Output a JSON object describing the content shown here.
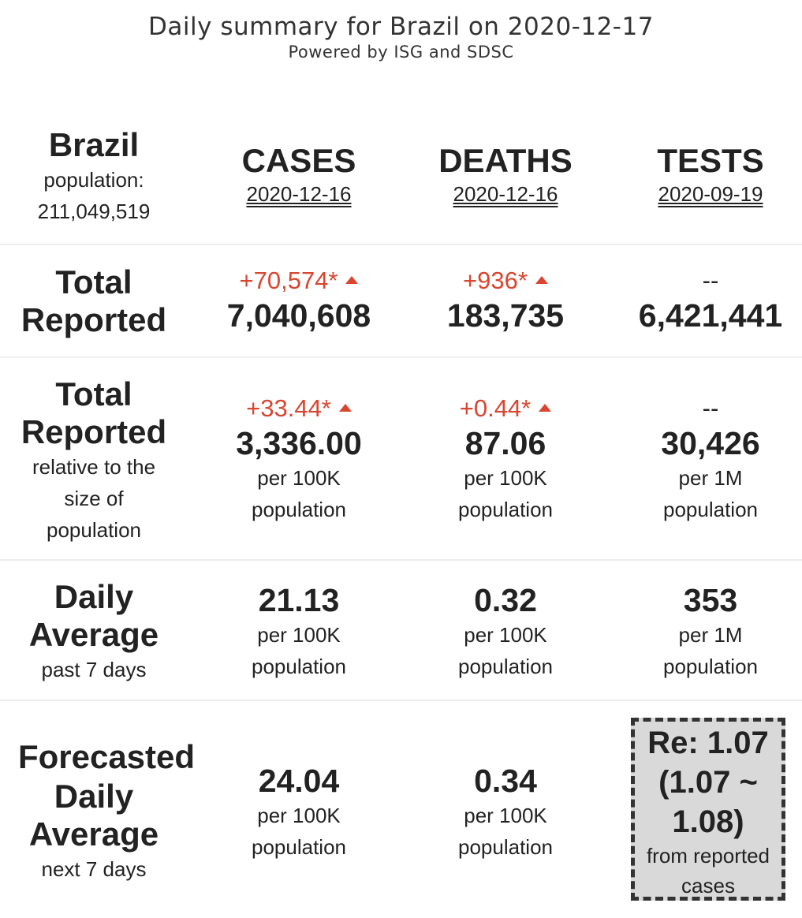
{
  "header": {
    "title": "Daily summary for Brazil on 2020-12-17",
    "subtitle": "Powered by ISG and SDSC"
  },
  "country": {
    "name": "Brazil",
    "population_label": "population:",
    "population_value": "211,049,519"
  },
  "columns": [
    {
      "title": "CASES",
      "date": "2020-12-16"
    },
    {
      "title": "DEATHS",
      "date": "2020-12-16"
    },
    {
      "title": "TESTS",
      "date": "2020-09-19"
    }
  ],
  "total_reported": {
    "label_line1": "Total",
    "label_line2": "Reported",
    "cases": {
      "delta": "+70,574*",
      "value": "7,040,608"
    },
    "deaths": {
      "delta": "+936*",
      "value": "183,735"
    },
    "tests": {
      "delta": "--",
      "value": "6,421,441"
    }
  },
  "relative": {
    "label_line1": "Total",
    "label_line2": "Reported",
    "note_line1": "relative to the",
    "note_line2": "size of",
    "note_line3": "population",
    "cases": {
      "delta": "+33.44*",
      "value": "3,336.00",
      "unit1": "per 100K",
      "unit2": "population"
    },
    "deaths": {
      "delta": "+0.44*",
      "value": "87.06",
      "unit1": "per 100K",
      "unit2": "population"
    },
    "tests": {
      "delta": "--",
      "value": "30,426",
      "unit1": "per 1M",
      "unit2": "population"
    }
  },
  "daily_average": {
    "label_line1": "Daily",
    "label_line2": "Average",
    "note": "past 7 days",
    "cases": {
      "value": "21.13",
      "unit1": "per 100K",
      "unit2": "population"
    },
    "deaths": {
      "value": "0.32",
      "unit1": "per 100K",
      "unit2": "population"
    },
    "tests": {
      "value": "353",
      "unit1": "per 1M",
      "unit2": "population"
    }
  },
  "forecast": {
    "label_line1": "Forecasted",
    "label_line2": "Daily",
    "label_line3": "Average",
    "note": "next 7 days",
    "cases": {
      "value": "24.04",
      "unit1": "per 100K",
      "unit2": "population"
    },
    "deaths": {
      "value": "0.34",
      "unit1": "per 100K",
      "unit2": "population"
    },
    "re": {
      "line1": "Re: 1.07",
      "line2": "(1.07 ~",
      "line3": "1.08)",
      "note_line1": "from reported",
      "note_line2": "cases"
    }
  },
  "colors": {
    "increase": "#d9452f",
    "text": "#222222",
    "re_box_bg": "#d9d9d9"
  }
}
